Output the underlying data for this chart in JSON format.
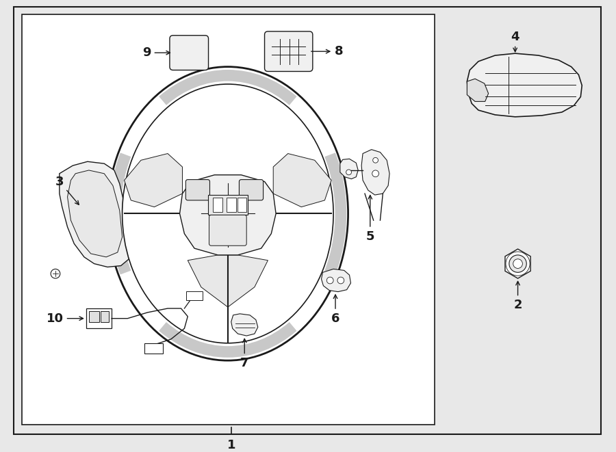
{
  "bg_color": "#e8e8e8",
  "box_facecolor": "#ffffff",
  "line_color": "#1a1a1a",
  "figsize": [
    9.0,
    6.61
  ],
  "dpi": 100
}
